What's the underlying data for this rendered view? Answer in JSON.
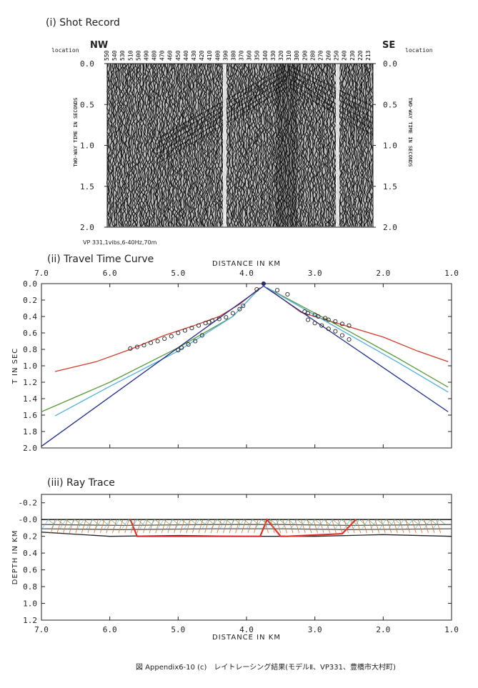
{
  "shot_record": {
    "title": "(i) Shot Record",
    "nw": "NW",
    "se": "SE",
    "location_label": "location",
    "location_ticks": [
      "550",
      "540",
      "530",
      "510",
      "500",
      "490",
      "480",
      "470",
      "460",
      "450",
      "440",
      "430",
      "420",
      "410",
      "400",
      "390",
      "380",
      "370",
      "360",
      "350",
      "340",
      "330",
      "320",
      "310",
      "300",
      "290",
      "280",
      "270",
      "260",
      "250",
      "240",
      "230",
      "220",
      "213"
    ],
    "time_ticks": [
      "0.0",
      "0.5",
      "1.0",
      "1.5",
      "2.0"
    ],
    "ylabel": "TWO-WAY TIME IN SECONDS",
    "vp_label": "VP 331,1vibs,6-40Hz,70m"
  },
  "travel_time": {
    "title": "(ii) Travel Time Curve",
    "xlabel": "DISTANCE IN KM",
    "ylabel": "T IN SEC",
    "x_ticks": [
      "7.0",
      "6.0",
      "5.0",
      "4.0",
      "3.0",
      "2.0",
      "1.0"
    ],
    "y_ticks": [
      "0.0",
      "0.2",
      "0.4",
      "0.6",
      "0.8",
      "1.0",
      "1.2",
      "1.4",
      "1.6",
      "1.8",
      "2.0"
    ]
  },
  "ray_trace": {
    "title": "(iii) Ray Trace",
    "xlabel": "DISTANCE IN KM",
    "ylabel": "DEPTH IN KM",
    "x_ticks": [
      "7.0",
      "6.0",
      "5.0",
      "4.0",
      "3.0",
      "2.0",
      "1.0"
    ],
    "y_ticks": [
      "-0.2",
      "-0.0",
      "0.2",
      "0.4",
      "0.6",
      "0.8",
      "1.0",
      "1.2"
    ]
  },
  "caption": "図 Appendix6-10 (c)　レイトレーシング結果(モデルⅡ、VP331、豊橋市大村町)",
  "chart_data": [
    {
      "type": "line",
      "title": "(ii) Travel Time Curve",
      "xlabel": "DISTANCE IN KM",
      "ylabel": "T IN SEC",
      "xlim": [
        7.0,
        1.0
      ],
      "ylim": [
        2.0,
        0.0
      ],
      "shot_x": 3.75,
      "series": [
        {
          "color": "#d23a2a",
          "x": [
            6.8,
            6.2,
            5.7,
            5.2,
            4.8,
            4.4,
            4.1,
            3.8
          ],
          "y": [
            1.07,
            0.95,
            0.8,
            0.63,
            0.52,
            0.4,
            0.25,
            0.05
          ]
        },
        {
          "color": "#5a9a3a",
          "x": [
            7.0,
            6.0,
            5.0,
            4.2,
            3.8
          ],
          "y": [
            1.56,
            1.2,
            0.78,
            0.4,
            0.05
          ]
        },
        {
          "color": "#4fb0e0",
          "x": [
            6.8,
            6.0,
            5.0,
            4.2,
            3.8
          ],
          "y": [
            1.61,
            1.25,
            0.82,
            0.4,
            0.05
          ]
        },
        {
          "color": "#1c2a8a",
          "x": [
            7.0,
            3.75
          ],
          "y": [
            1.98,
            0.03
          ]
        },
        {
          "color": "#d23a2a",
          "x": [
            3.7,
            3.2,
            2.6,
            2.0,
            1.5,
            1.05
          ],
          "y": [
            0.05,
            0.35,
            0.5,
            0.65,
            0.82,
            0.95
          ]
        },
        {
          "color": "#5a9a3a",
          "x": [
            3.7,
            2.5,
            1.8,
            1.05
          ],
          "y": [
            0.05,
            0.58,
            0.9,
            1.26
          ]
        },
        {
          "color": "#4fb0e0",
          "x": [
            3.7,
            2.5,
            1.8,
            1.05
          ],
          "y": [
            0.05,
            0.62,
            0.95,
            1.32
          ]
        },
        {
          "color": "#1c2a8a",
          "x": [
            3.75,
            1.05
          ],
          "y": [
            0.03,
            1.56
          ]
        }
      ],
      "observed": {
        "x": [
          5.7,
          5.6,
          5.5,
          5.4,
          5.3,
          5.2,
          5.1,
          5.0,
          4.9,
          4.8,
          4.7,
          4.6,
          4.55,
          4.5,
          4.4,
          4.3,
          4.2,
          4.1,
          4.05,
          3.85,
          5.0,
          4.95,
          4.85,
          4.75,
          4.65,
          3.75,
          3.55,
          3.4,
          3.15,
          3.1,
          3.0,
          2.95,
          2.85,
          2.8,
          2.7,
          2.6,
          2.5,
          3.1,
          3.0,
          2.9,
          2.8,
          2.7,
          2.6,
          2.5
        ],
        "y": [
          0.79,
          0.77,
          0.75,
          0.72,
          0.7,
          0.67,
          0.64,
          0.6,
          0.57,
          0.54,
          0.51,
          0.48,
          0.47,
          0.45,
          0.43,
          0.41,
          0.36,
          0.31,
          0.27,
          0.07,
          0.81,
          0.78,
          0.74,
          0.7,
          0.63,
          0.0,
          0.08,
          0.13,
          0.34,
          0.36,
          0.38,
          0.4,
          0.42,
          0.44,
          0.46,
          0.49,
          0.51,
          0.44,
          0.48,
          0.51,
          0.55,
          0.58,
          0.63,
          0.68
        ]
      }
    },
    {
      "type": "line",
      "title": "(iii) Ray Trace",
      "xlabel": "DISTANCE IN KM",
      "ylabel": "DEPTH IN KM",
      "xlim": [
        7.0,
        1.0
      ],
      "ylim": [
        1.2,
        -0.3
      ],
      "series": [
        {
          "color": "#000000",
          "x": [
            7.0,
            6.0,
            5.0,
            4.0,
            3.0,
            2.0,
            1.0
          ],
          "y": [
            0.0,
            0.0,
            0.0,
            0.0,
            0.0,
            0.0,
            0.0
          ]
        },
        {
          "color": "#555555",
          "x": [
            7.0,
            5.8,
            4.5,
            3.5,
            2.5,
            1.0
          ],
          "y": [
            0.06,
            0.07,
            0.06,
            0.06,
            0.07,
            0.06
          ]
        },
        {
          "color": "#555555",
          "x": [
            7.0,
            5.8,
            4.5,
            3.5,
            2.5,
            1.0
          ],
          "y": [
            0.11,
            0.12,
            0.11,
            0.11,
            0.12,
            0.11
          ]
        },
        {
          "color": "#222222",
          "x": [
            7.0,
            6.0,
            5.0,
            4.0,
            3.0,
            2.0,
            1.0
          ],
          "y": [
            0.15,
            0.2,
            0.19,
            0.2,
            0.2,
            0.18,
            0.2
          ]
        },
        {
          "color": "#e0302a",
          "x": [
            5.7,
            5.6,
            4.2,
            3.8,
            3.7,
            3.5,
            3.4,
            2.6,
            2.4
          ],
          "y": [
            0.0,
            0.2,
            0.2,
            0.2,
            0.0,
            0.2,
            0.2,
            0.17,
            0.0
          ]
        }
      ]
    }
  ]
}
